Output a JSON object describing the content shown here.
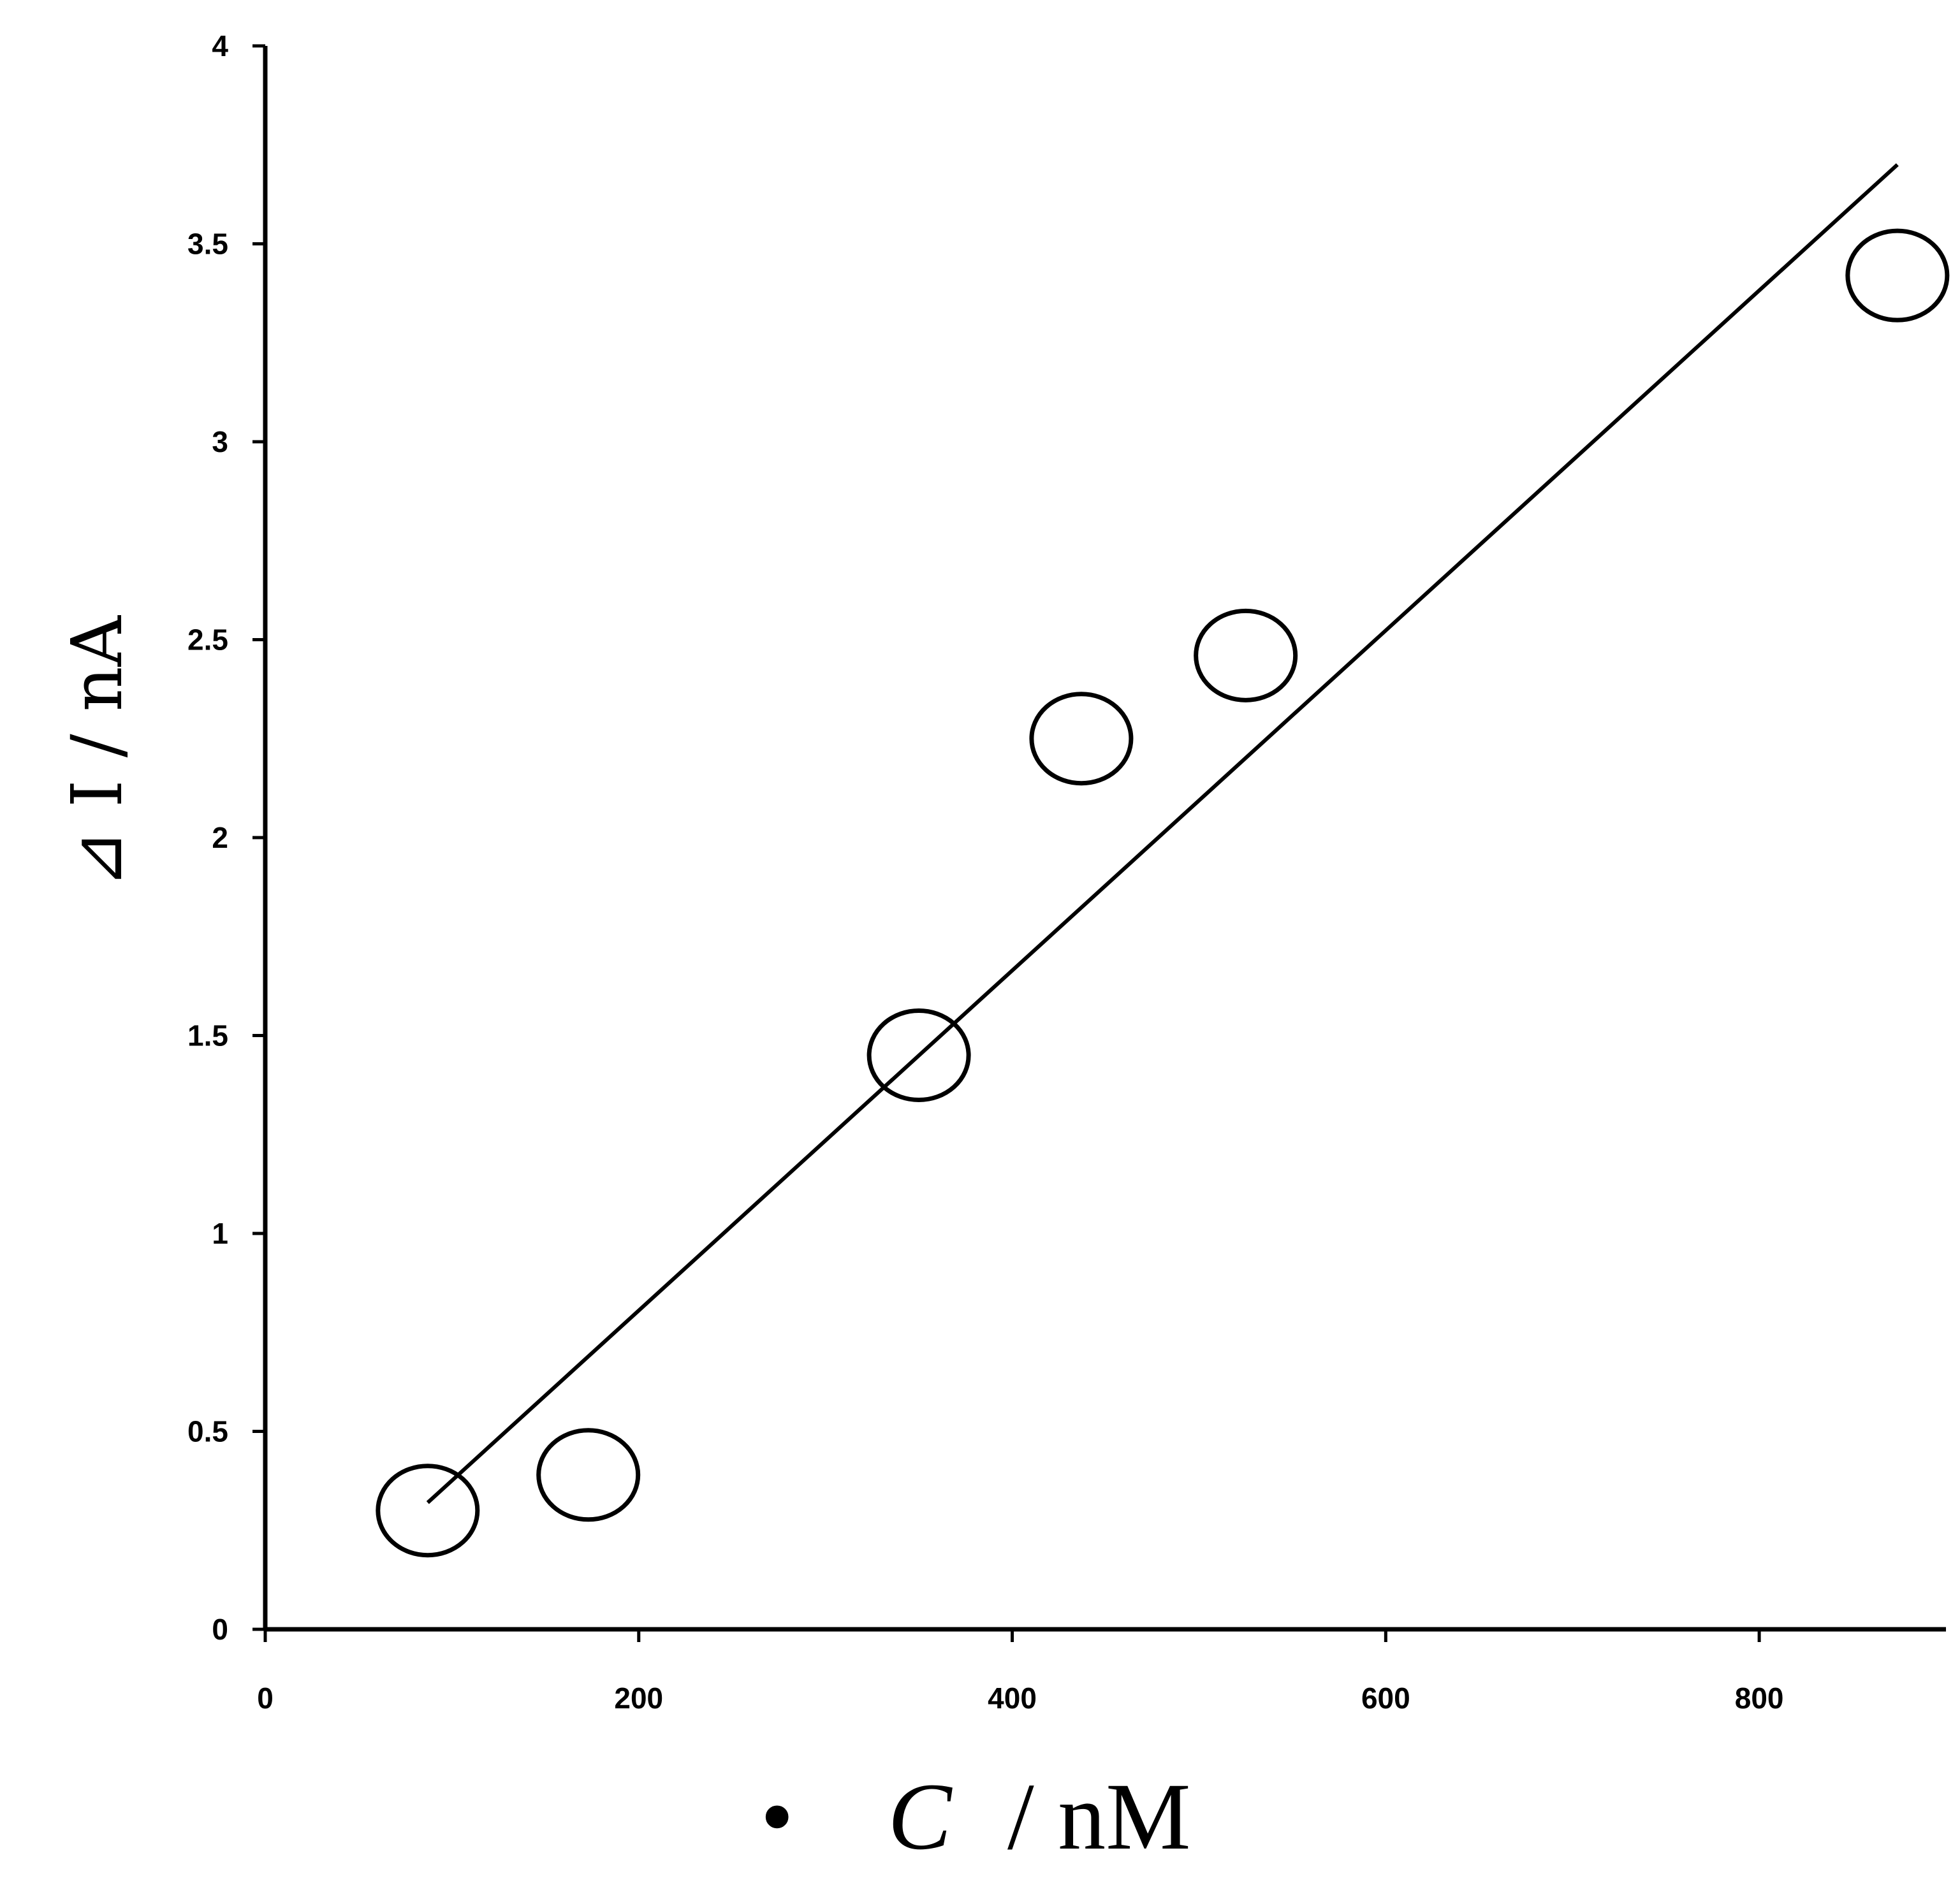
{
  "chart_data": {
    "type": "scatter",
    "xlabel_bullet": "•",
    "xlabel_var": "C",
    "xlabel_unit": "/ nM",
    "ylabel": "⊿ I / nA",
    "xlim": [
      0,
      900
    ],
    "ylim": [
      0,
      4
    ],
    "x_ticks": [
      0,
      200,
      400,
      600,
      800
    ],
    "x_tick_labels": [
      "0",
      "200",
      "400",
      "600",
      "800"
    ],
    "y_ticks": [
      0,
      0.5,
      1,
      1.5,
      2,
      2.5,
      3,
      3.5,
      4
    ],
    "y_tick_labels": [
      "0",
      "0.5",
      "1",
      "1.5",
      "2",
      "2.5",
      "3",
      "3.5",
      "4"
    ],
    "grid": false,
    "marker": "open-circle",
    "points": [
      {
        "x": 87,
        "y": 0.3
      },
      {
        "x": 173,
        "y": 0.39
      },
      {
        "x": 350,
        "y": 1.45
      },
      {
        "x": 437,
        "y": 2.25
      },
      {
        "x": 525,
        "y": 2.46
      },
      {
        "x": 874,
        "y": 3.42
      }
    ],
    "fit_line": {
      "x": [
        87,
        874
      ],
      "y": [
        0.32,
        3.7
      ]
    }
  }
}
